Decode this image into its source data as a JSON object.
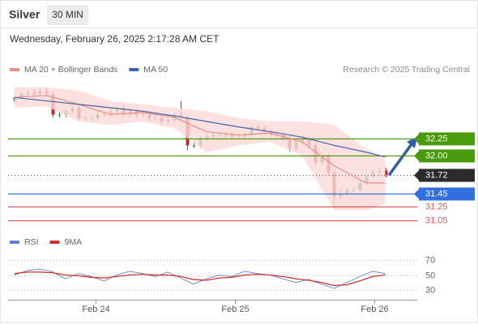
{
  "header": {
    "title": "Silver",
    "timeframe": "30 MIN",
    "datetime": "Wednesday, February 26, 2025 2:17:28 AM CET"
  },
  "chart_data": [
    {
      "type": "candlestick",
      "source": "Research © 2025 Trading Central",
      "up_color": "#3d8b2f",
      "down_color": "#c0282d",
      "open": [
        32.8,
        32.85,
        32.9,
        32.92,
        32.9,
        32.95,
        32.9,
        32.6,
        32.6,
        32.65,
        32.7,
        32.55,
        32.55,
        32.55,
        32.6,
        32.6,
        32.65,
        32.7,
        32.6,
        32.65,
        32.6,
        32.6,
        32.55,
        32.55,
        32.5,
        32.52,
        32.6,
        32.55,
        32.15,
        32.15,
        32.25,
        32.28,
        32.3,
        32.3,
        32.3,
        32.28,
        32.28,
        32.3,
        32.42,
        32.4,
        32.35,
        32.3,
        32.3,
        32.25,
        32.1,
        32.2,
        32.25,
        32.15,
        31.9,
        32.0,
        31.75,
        31.4,
        31.45,
        31.5,
        31.5,
        31.6,
        31.7,
        31.75,
        31.78
      ],
      "high": [
        32.89,
        32.94,
        32.96,
        32.96,
        32.99,
        32.99,
        32.94,
        32.64,
        32.69,
        32.74,
        32.74,
        32.59,
        32.59,
        32.64,
        32.64,
        32.69,
        32.74,
        32.74,
        32.69,
        32.69,
        32.64,
        32.64,
        32.59,
        32.59,
        32.56,
        32.64,
        32.8,
        32.59,
        32.19,
        32.29,
        32.32,
        32.34,
        32.34,
        32.34,
        32.34,
        32.32,
        32.34,
        32.46,
        32.46,
        32.44,
        32.39,
        32.34,
        32.34,
        32.29,
        32.24,
        32.29,
        32.29,
        32.19,
        32.04,
        32.04,
        31.79,
        31.49,
        31.54,
        31.54,
        31.64,
        31.74,
        31.79,
        31.82,
        31.82
      ],
      "low": [
        32.76,
        32.81,
        32.86,
        32.86,
        32.86,
        32.86,
        32.56,
        32.56,
        32.56,
        32.61,
        32.51,
        32.51,
        32.51,
        32.51,
        32.56,
        32.56,
        32.61,
        32.56,
        32.56,
        32.56,
        32.56,
        32.51,
        32.51,
        32.46,
        32.46,
        32.48,
        32.51,
        32.08,
        32.11,
        32.11,
        32.21,
        32.24,
        32.26,
        32.26,
        32.24,
        32.24,
        32.24,
        32.26,
        32.36,
        32.31,
        32.26,
        32.26,
        32.21,
        32.06,
        32.06,
        32.16,
        32.11,
        31.86,
        31.86,
        31.71,
        31.25,
        31.36,
        31.41,
        31.46,
        31.46,
        31.56,
        31.66,
        31.71,
        31.68
      ],
      "close": [
        32.85,
        32.9,
        32.92,
        32.9,
        32.95,
        32.9,
        32.6,
        32.6,
        32.65,
        32.7,
        32.55,
        32.55,
        32.55,
        32.6,
        32.6,
        32.65,
        32.7,
        32.6,
        32.65,
        32.6,
        32.6,
        32.55,
        32.55,
        32.5,
        32.52,
        32.6,
        32.55,
        32.15,
        32.15,
        32.25,
        32.28,
        32.3,
        32.3,
        32.3,
        32.28,
        32.28,
        32.3,
        32.42,
        32.4,
        32.35,
        32.3,
        32.3,
        32.25,
        32.1,
        32.2,
        32.25,
        32.15,
        31.9,
        32.0,
        31.75,
        31.4,
        31.45,
        31.5,
        31.5,
        31.6,
        31.7,
        31.75,
        31.78,
        31.72
      ],
      "overlay_x": [
        0,
        5,
        10,
        15,
        20,
        25,
        30,
        35,
        40,
        45,
        50,
        55,
        58
      ],
      "series": [
        {
          "name": "MA 20 + Bollinger Bands",
          "color": "#f28b82",
          "band_color": "#fcd9d9",
          "values": [
            32.85,
            32.88,
            32.75,
            32.6,
            32.63,
            32.56,
            32.35,
            32.3,
            32.33,
            32.2,
            31.85,
            31.6,
            31.6
          ],
          "upper": [
            33.0,
            33.0,
            32.95,
            32.8,
            32.75,
            32.7,
            32.65,
            32.55,
            32.5,
            32.5,
            32.45,
            32.1,
            31.95
          ],
          "lower": [
            32.7,
            32.72,
            32.5,
            32.45,
            32.5,
            32.4,
            32.05,
            32.15,
            32.2,
            32.0,
            31.2,
            31.2,
            31.3
          ]
        },
        {
          "name": "MA 50",
          "color": "#3f64a8",
          "values": [
            32.85,
            32.8,
            32.75,
            32.7,
            32.65,
            32.58,
            32.5,
            32.42,
            32.35,
            32.27,
            32.15,
            32.05,
            31.98
          ]
        }
      ],
      "levels": [
        {
          "value": 32.25,
          "label": "32.25",
          "color": "#4a9a0e",
          "box": true,
          "line": "solid"
        },
        {
          "value": 32,
          "label": "32.00",
          "color": "#4a9a0e",
          "box": true,
          "line": "solid"
        },
        {
          "value": 31.72,
          "label": "31.72",
          "color": "#2b2b2b",
          "box": true,
          "line": "dotted"
        },
        {
          "value": 31.45,
          "label": "31.45",
          "color": "#2f6fde",
          "box": true,
          "line": "solid"
        },
        {
          "value": 31.25,
          "label": "31.25",
          "color": "#e05555",
          "box": false,
          "line": "solid"
        },
        {
          "value": 31.05,
          "label": "31.05",
          "color": "#e05555",
          "box": false,
          "line": "solid"
        }
      ],
      "xlim": [
        -1,
        63
      ],
      "ylim": [
        30.9,
        33.15
      ]
    },
    {
      "type": "line",
      "x": [
        0,
        2,
        4,
        6,
        8,
        10,
        12,
        14,
        16,
        18,
        20,
        22,
        24,
        26,
        28,
        30,
        32,
        34,
        36,
        38,
        40,
        42,
        44,
        46,
        48,
        50,
        52,
        54,
        56,
        58
      ],
      "series": [
        {
          "name": "RSI",
          "color": "#5b7fd6",
          "values": [
            50,
            56,
            58,
            54,
            45,
            52,
            48,
            42,
            50,
            55,
            52,
            48,
            54,
            46,
            38,
            45,
            50,
            48,
            55,
            52,
            50,
            45,
            40,
            44,
            38,
            32,
            40,
            48,
            55,
            52
          ]
        },
        {
          "name": "9MA",
          "color": "#d32f2f",
          "values": [
            52,
            54,
            54,
            53,
            50,
            49,
            47,
            46,
            48,
            50,
            51,
            50,
            50,
            48,
            44,
            43,
            46,
            47,
            50,
            51,
            50,
            48,
            45,
            43,
            40,
            36,
            37,
            42,
            48,
            50
          ]
        }
      ],
      "xlim": [
        -1,
        63
      ],
      "ylim": [
        17,
        82
      ],
      "yticks": [
        70,
        50,
        30
      ],
      "xticks": [
        {
          "value": 12.7,
          "label": "Feb 24"
        },
        {
          "value": 34.5,
          "label": "Feb 25"
        },
        {
          "value": 56.3,
          "label": "Feb 26"
        }
      ]
    }
  ]
}
